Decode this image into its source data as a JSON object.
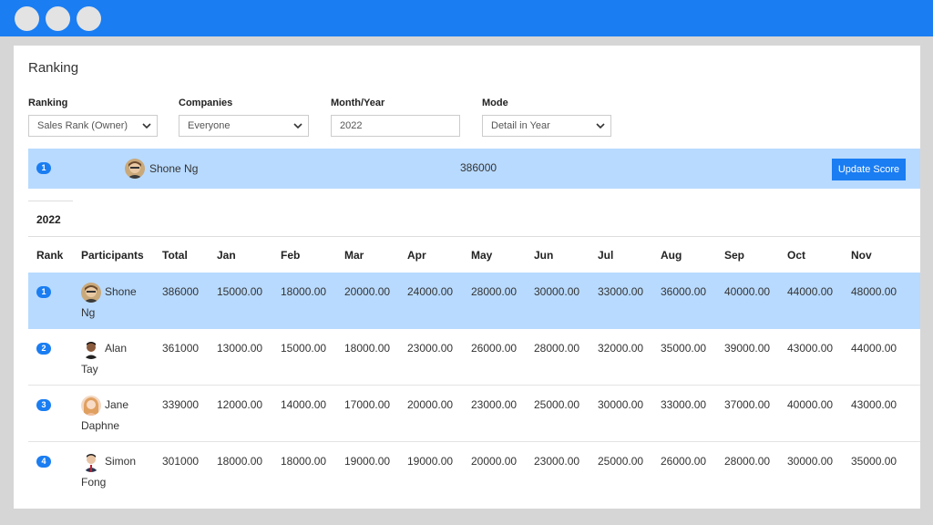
{
  "window": {
    "dots": [
      "",
      "",
      ""
    ]
  },
  "page": {
    "title": "Ranking"
  },
  "filters": {
    "ranking": {
      "label": "Ranking",
      "value": "Sales Rank (Owner)"
    },
    "companies": {
      "label": "Companies",
      "value": "Everyone"
    },
    "month_year": {
      "label": "Month/Year",
      "value": "2022"
    },
    "mode": {
      "label": "Mode",
      "value": "Detail in Year"
    }
  },
  "top": {
    "rank": "1",
    "name": "Shone Ng",
    "score": "386000",
    "update_label": "Update Score"
  },
  "year_tab": "2022",
  "table": {
    "headers": [
      "Rank",
      "Participants",
      "Total",
      "Jan",
      "Feb",
      "Mar",
      "Apr",
      "May",
      "Jun",
      "Jul",
      "Aug",
      "Sep",
      "Oct",
      "Nov"
    ],
    "rows": [
      {
        "rank": "1",
        "first": "Shone",
        "last": "Ng",
        "total": "386000",
        "months": [
          "15000.00",
          "18000.00",
          "20000.00",
          "24000.00",
          "28000.00",
          "30000.00",
          "33000.00",
          "36000.00",
          "40000.00",
          "44000.00",
          "48000.00"
        ]
      },
      {
        "rank": "2",
        "first": "Alan",
        "last": "Tay",
        "total": "361000",
        "months": [
          "13000.00",
          "15000.00",
          "18000.00",
          "23000.00",
          "26000.00",
          "28000.00",
          "32000.00",
          "35000.00",
          "39000.00",
          "43000.00",
          "44000.00"
        ]
      },
      {
        "rank": "3",
        "first": "Jane",
        "last": "Daphne",
        "total": "339000",
        "months": [
          "12000.00",
          "14000.00",
          "17000.00",
          "20000.00",
          "23000.00",
          "25000.00",
          "30000.00",
          "33000.00",
          "37000.00",
          "40000.00",
          "43000.00"
        ]
      },
      {
        "rank": "4",
        "first": "Simon",
        "last": "Fong",
        "total": "301000",
        "months": [
          "18000.00",
          "18000.00",
          "19000.00",
          "19000.00",
          "20000.00",
          "23000.00",
          "25000.00",
          "26000.00",
          "28000.00",
          "30000.00",
          "35000.00"
        ]
      }
    ]
  },
  "colors": {
    "accent": "#1a7df2",
    "highlight": "#b8daff"
  }
}
